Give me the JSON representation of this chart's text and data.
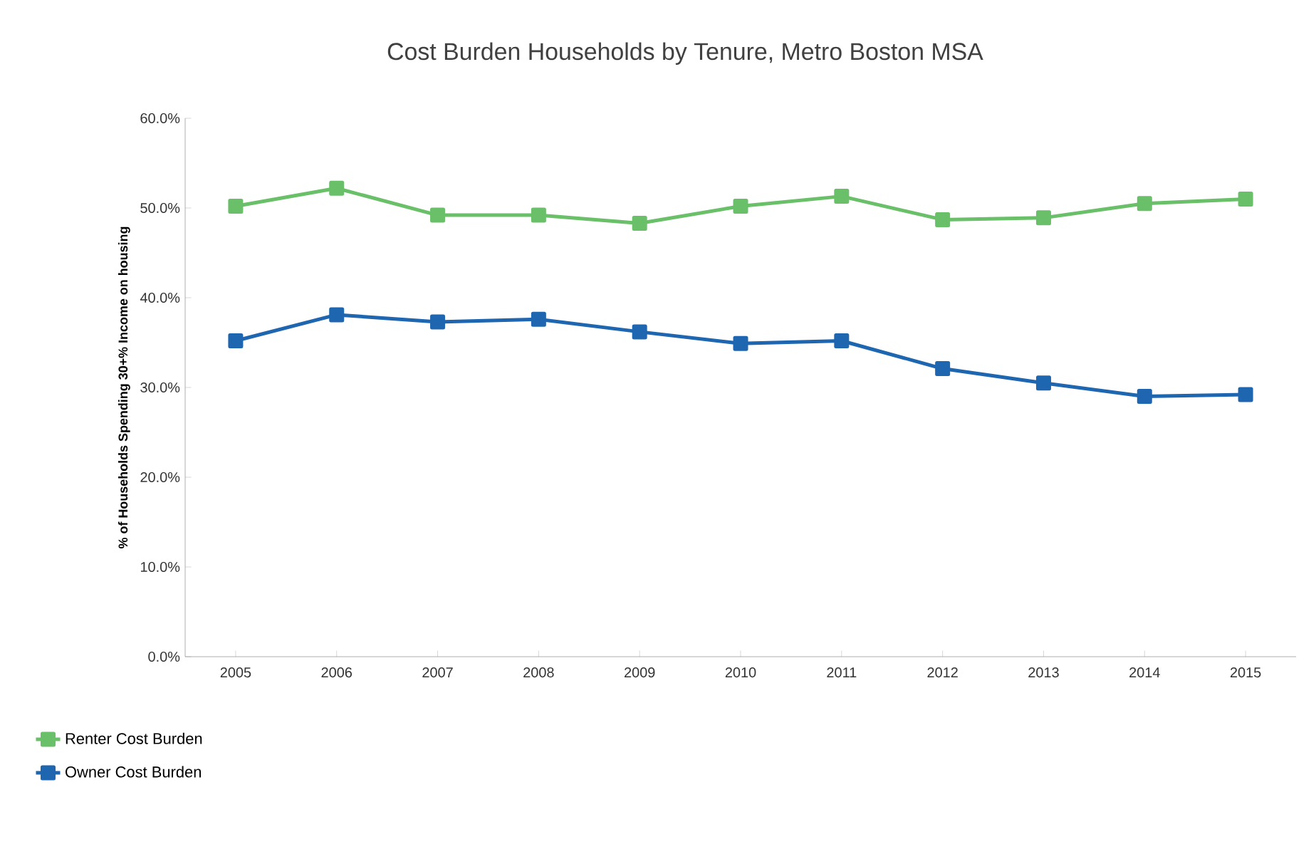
{
  "chart_data": {
    "type": "line",
    "title": "Cost Burden Households by Tenure, Metro Boston MSA",
    "ylabel": "% of Households Spending 30+% Income on housing",
    "categories": [
      "2005",
      "2006",
      "2007",
      "2008",
      "2009",
      "2010",
      "2011",
      "2012",
      "2013",
      "2014",
      "2015"
    ],
    "series": [
      {
        "name": "Renter Cost Burden",
        "color": "#6abf69",
        "values": [
          50.2,
          52.2,
          49.2,
          49.2,
          48.3,
          50.2,
          51.3,
          48.7,
          48.9,
          50.5,
          51.0
        ]
      },
      {
        "name": "Owner Cost Burden",
        "color": "#1f66b0",
        "values": [
          35.2,
          38.1,
          37.3,
          37.6,
          36.2,
          34.9,
          35.2,
          32.1,
          30.5,
          29.0,
          29.2
        ]
      }
    ],
    "ylim": [
      0,
      60
    ],
    "yticks": [
      {
        "value": 0,
        "label": "0.0%"
      },
      {
        "value": 10,
        "label": "10.0%"
      },
      {
        "value": 20,
        "label": "20.0%"
      },
      {
        "value": 30,
        "label": "30.0%"
      },
      {
        "value": 40,
        "label": "40.0%"
      },
      {
        "value": 50,
        "label": "50.0%"
      },
      {
        "value": 60,
        "label": "60.0%"
      }
    ],
    "grid": false,
    "legend": "bottom left",
    "marker": "square",
    "line_style": "solid"
  }
}
